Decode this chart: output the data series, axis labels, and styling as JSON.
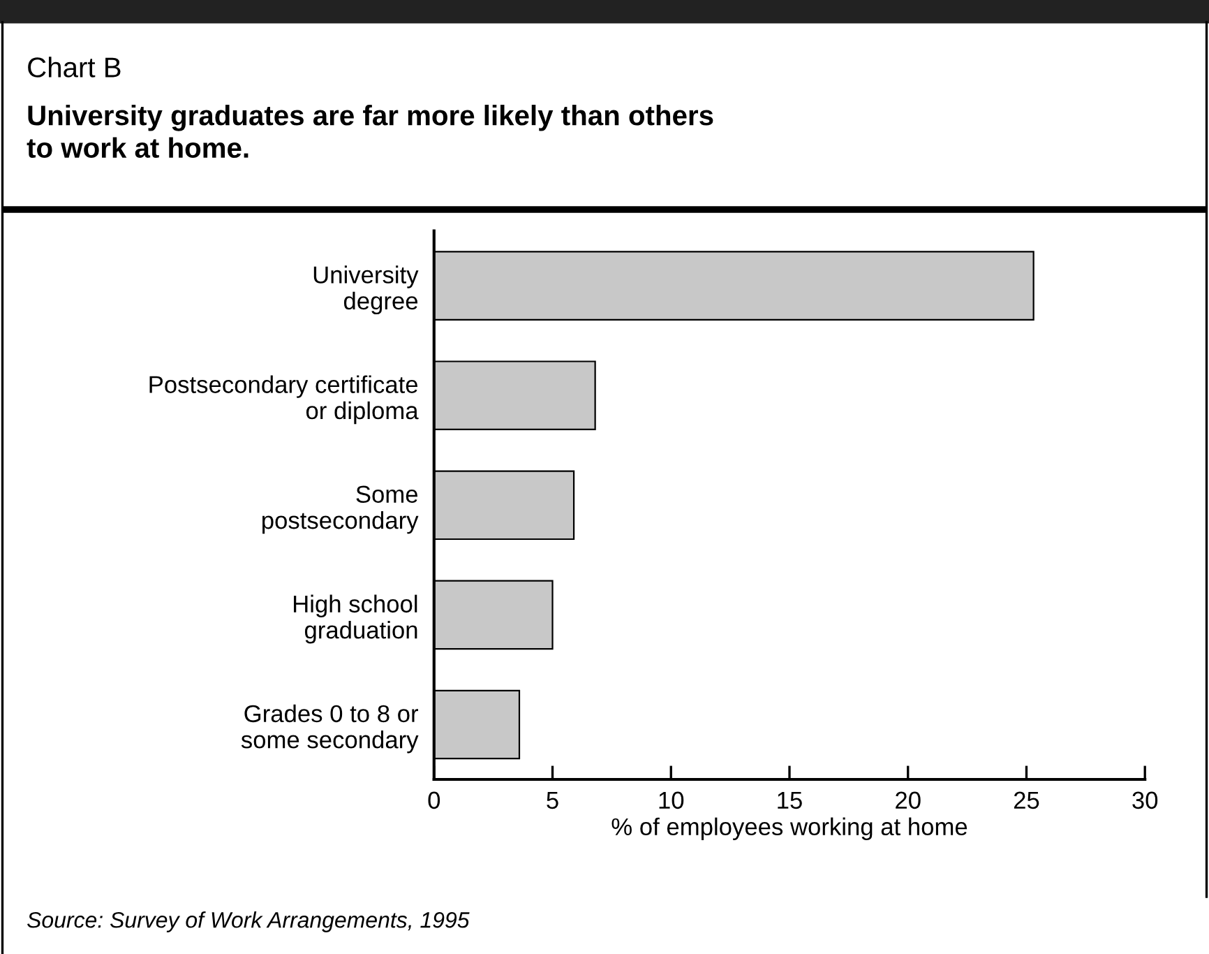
{
  "chart_data": {
    "type": "bar",
    "orientation": "horizontal",
    "title": "Chart B",
    "subtitle": "University graduates are far more likely than others\nto work at home.",
    "categories": [
      "University\ndegree",
      "Postsecondary certificate\nor diploma",
      "Some\npostsecondary",
      "High school\ngraduation",
      "Grades 0 to 8 or\nsome secondary"
    ],
    "values": [
      25.3,
      6.8,
      5.9,
      5.0,
      3.6
    ],
    "color": "#c8c8c8",
    "xlim": [
      0,
      30
    ],
    "xticks": [
      0,
      5,
      10,
      15,
      20,
      25,
      30
    ],
    "xlabel": "% of employees working at home",
    "grid": false,
    "legend": false,
    "annotations": [
      "Source: Survey of Work Arrangements, 1995"
    ]
  }
}
